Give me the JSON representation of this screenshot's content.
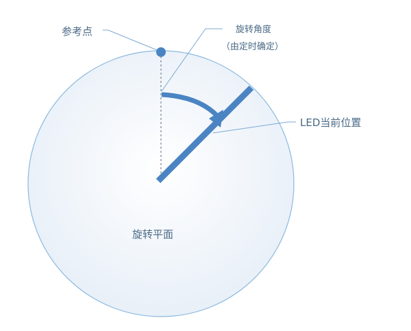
{
  "labels": {
    "reference_point": "参考点",
    "rotation_angle_line1": "旋转角度",
    "rotation_angle_line2": "（由定时确定）",
    "led_position": "LED当前位置",
    "rotation_plane": "旋转平面"
  },
  "colors": {
    "accent": "#4b84c3",
    "circle_stroke": "#8ab8de",
    "circle_fill_center": "#ffffff",
    "circle_fill_edge": "#e8f0f8",
    "leader_line": "#7aa9d3",
    "text": "#4a6a86"
  }
}
